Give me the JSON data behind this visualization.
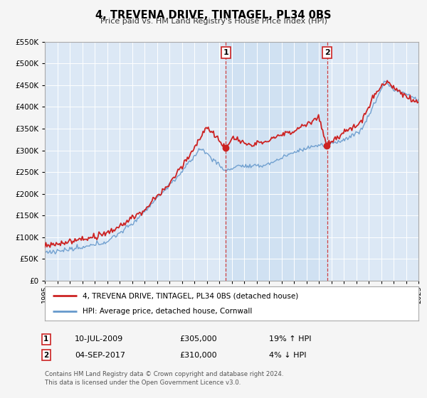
{
  "title": "4, TREVENA DRIVE, TINTAGEL, PL34 0BS",
  "subtitle": "Price paid vs. HM Land Registry's House Price Index (HPI)",
  "legend_entry1": "4, TREVENA DRIVE, TINTAGEL, PL34 0BS (detached house)",
  "legend_entry2": "HPI: Average price, detached house, Cornwall",
  "annotation1_label": "1",
  "annotation1_date": "10-JUL-2009",
  "annotation1_price": "£305,000",
  "annotation1_hpi": "19% ↑ HPI",
  "annotation1_year": 2009.53,
  "annotation1_value": 305000,
  "annotation2_label": "2",
  "annotation2_date": "04-SEP-2017",
  "annotation2_price": "£310,000",
  "annotation2_hpi": "4% ↓ HPI",
  "annotation2_year": 2017.67,
  "annotation2_value": 310000,
  "hpi_color": "#6699cc",
  "price_color": "#cc2222",
  "background_color": "#f5f5f5",
  "plot_bg_color": "#dce8f5",
  "shade_color": "#c8ddf0",
  "grid_color": "#ffffff",
  "footer": "Contains HM Land Registry data © Crown copyright and database right 2024.\nThis data is licensed under the Open Government Licence v3.0.",
  "ylim": [
    0,
    550000
  ],
  "xlim_start": 1995,
  "xlim_end": 2025
}
